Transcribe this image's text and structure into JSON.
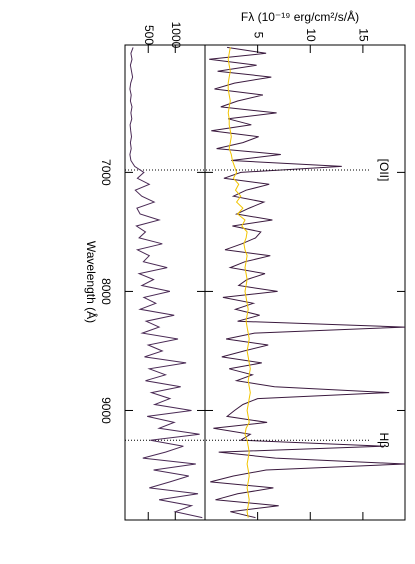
{
  "chart_data": [
    {
      "type": "line",
      "ylabel": "Fλ (10⁻¹⁹ erg/cm²/s/Å)",
      "x": [
        5950,
        6000,
        6050,
        6100,
        6150,
        6200,
        6250,
        6300,
        6350,
        6400,
        6450,
        6500,
        6550,
        6600,
        6650,
        6700,
        6750,
        6800,
        6850,
        6900,
        6950,
        7000,
        7050,
        7100,
        7150,
        7200,
        7250,
        7300,
        7350,
        7400,
        7450,
        7500,
        7550,
        7600,
        7650,
        7700,
        7750,
        7800,
        7850,
        7900,
        7950,
        8000,
        8050,
        8100,
        8150,
        8200,
        8250,
        8300,
        8350,
        8400,
        8450,
        8500,
        8550,
        8600,
        8650,
        8700,
        8750,
        8800,
        8850,
        8900,
        8950,
        9000,
        9050,
        9100,
        9150,
        9200,
        9250,
        9300,
        9350,
        9400,
        9450,
        9500,
        9550,
        9600,
        9650,
        9700,
        9750,
        9800,
        9850,
        9900
      ],
      "series": [
        {
          "color": "#3b1a3f",
          "values": [
            2.1,
            5.8,
            0.4,
            4.9,
            1.2,
            6.3,
            2.8,
            0.9,
            5.5,
            3.1,
            1.5,
            6.8,
            2.2,
            4.4,
            0.6,
            5.1,
            3.6,
            1.1,
            7.2,
            2.5,
            13.0,
            3.4,
            1.8,
            6.1,
            3.9,
            2.7,
            5.6,
            4.2,
            3.0,
            6.4,
            2.6,
            5.3,
            4.8,
            3.5,
            1.9,
            6.2,
            3.8,
            2.4,
            5.7,
            4.0,
            3.2,
            6.9,
            1.7,
            4.6,
            2.9,
            5.2,
            3.1,
            19.0,
            4.7,
            2.0,
            6.0,
            3.7,
            1.6,
            5.4,
            2.3,
            4.5,
            3.0,
            6.6,
            17.5,
            5.0,
            3.6,
            2.8,
            2.1,
            5.9,
            0.8,
            4.3,
            3.4,
            17.0,
            1.3,
            6.7,
            19.0,
            5.8,
            2.7,
            0.5,
            6.5,
            3.1,
            1.0,
            7.0,
            2.4,
            4.8
          ]
        },
        {
          "color": "#f2c400",
          "values": [
            2.4,
            2.3,
            2.2,
            2.3,
            2.4,
            2.3,
            2.2,
            2.2,
            2.3,
            2.4,
            2.3,
            2.2,
            2.3,
            2.3,
            2.4,
            2.5,
            2.4,
            2.3,
            2.5,
            2.6,
            2.8,
            3.0,
            2.7,
            3.2,
            2.9,
            3.4,
            3.0,
            3.6,
            3.1,
            3.8,
            3.5,
            4.0,
            3.9,
            3.7,
            3.8,
            4.0,
            3.9,
            3.8,
            3.9,
            4.0,
            3.9,
            3.8,
            3.9,
            4.0,
            4.1,
            4.0,
            3.9,
            4.0,
            4.1,
            4.2,
            4.1,
            4.0,
            4.1,
            4.2,
            4.3,
            4.2,
            4.1,
            4.2,
            4.3,
            4.2,
            4.1,
            4.0,
            4.1,
            4.2,
            3.9,
            3.8,
            4.0,
            4.1,
            4.2,
            4.1,
            4.0,
            4.1,
            4.2,
            4.1,
            4.0,
            4.1,
            4.2,
            4.1,
            4.0,
            4.1
          ]
        }
      ],
      "xlim": [
        5930,
        9920
      ],
      "ylim": [
        0,
        19
      ],
      "yticks": [
        5,
        10,
        15
      ],
      "xticks": [
        7000,
        8000,
        9000
      ],
      "annotations": [
        {
          "text": "[OII]",
          "x": 6980
        },
        {
          "text": "Hβ",
          "x": 9250
        }
      ]
    },
    {
      "type": "line",
      "xlabel": "Wavelength (Å)",
      "x": [
        5950,
        6000,
        6050,
        6100,
        6150,
        6200,
        6250,
        6300,
        6350,
        6400,
        6450,
        6500,
        6550,
        6600,
        6650,
        6700,
        6750,
        6800,
        6850,
        6900,
        6950,
        7000,
        7050,
        7100,
        7150,
        7200,
        7250,
        7300,
        7350,
        7400,
        7450,
        7500,
        7550,
        7600,
        7650,
        7700,
        7750,
        7800,
        7850,
        7900,
        7950,
        8000,
        8050,
        8100,
        8150,
        8200,
        8250,
        8300,
        8350,
        8400,
        8450,
        8500,
        8550,
        8600,
        8650,
        8700,
        8750,
        8800,
        8850,
        8900,
        8950,
        9000,
        9050,
        9100,
        9150,
        9200,
        9250,
        9300,
        9350,
        9400,
        9450,
        9500,
        9550,
        9600,
        9650,
        9700,
        9750,
        9800,
        9850,
        9900
      ],
      "series": [
        {
          "color": "#4a2a55",
          "values": [
            220,
            180,
            200,
            170,
            190,
            210,
            175,
            160,
            185,
            170,
            200,
            180,
            195,
            165,
            175,
            190,
            170,
            185,
            160,
            180,
            250,
            420,
            300,
            520,
            260,
            380,
            610,
            290,
            350,
            700,
            280,
            450,
            330,
            760,
            300,
            520,
            410,
            850,
            330,
            600,
            380,
            900,
            420,
            640,
            350,
            980,
            460,
            700,
            390,
            1050,
            500,
            760,
            430,
            1200,
            520,
            820,
            450,
            1100,
            560,
            900,
            620,
            1300,
            480,
            980,
            700,
            1450,
            540,
            1150,
            820,
            400,
            1380,
            600,
            1250,
            900,
            520,
            1420,
            700,
            1300,
            1000,
            1500
          ]
        }
      ],
      "xlim": [
        5930,
        9920
      ],
      "ylim": [
        70,
        1550
      ],
      "yticks": [
        500,
        1000
      ],
      "xticks": [
        7000,
        8000,
        9000
      ]
    }
  ]
}
